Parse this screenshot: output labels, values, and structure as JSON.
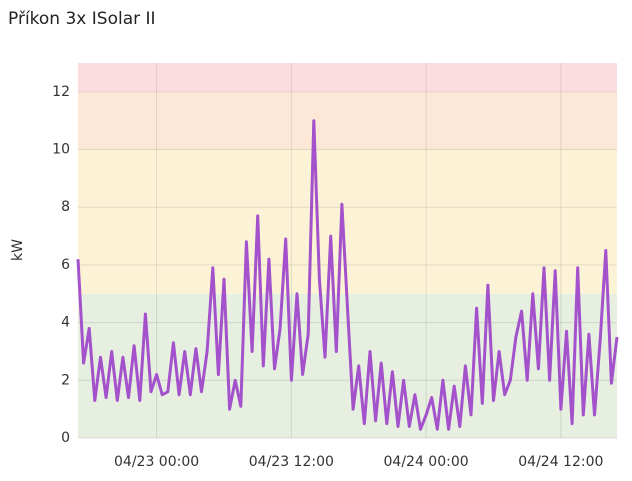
{
  "chart_data": {
    "type": "line",
    "title": "Příkon 3x ISolar II",
    "y_label": "kW",
    "categories": [
      null,
      null,
      null,
      null,
      null,
      null,
      null,
      null,
      null,
      null,
      null,
      null,
      null,
      null,
      "04/23 00:00",
      null,
      null,
      null,
      null,
      null,
      null,
      null,
      null,
      null,
      null,
      null,
      null,
      null,
      null,
      null,
      null,
      null,
      null,
      null,
      null,
      null,
      null,
      null,
      "04/23 12:00",
      null,
      null,
      null,
      null,
      null,
      null,
      null,
      null,
      null,
      null,
      null,
      null,
      null,
      null,
      null,
      null,
      null,
      null,
      null,
      null,
      null,
      null,
      null,
      "04/24 00:00",
      null,
      null,
      null,
      null,
      null,
      null,
      null,
      null,
      null,
      null,
      null,
      null,
      null,
      null,
      null,
      null,
      null,
      null,
      null,
      null,
      null,
      null,
      null,
      "04/24 12:00",
      null,
      null,
      null,
      null,
      null,
      null,
      null,
      null,
      null,
      null
    ],
    "series": [
      {
        "color": "#a352cc",
        "values": [
          6.2,
          2.6,
          3.8,
          1.3,
          2.8,
          1.4,
          3.0,
          1.3,
          2.8,
          1.4,
          3.2,
          1.3,
          4.3,
          1.6,
          2.2,
          1.5,
          1.6,
          3.3,
          1.5,
          3.0,
          1.5,
          3.1,
          1.6,
          3.0,
          5.9,
          2.2,
          5.5,
          1.0,
          2.0,
          1.1,
          6.8,
          3.0,
          7.7,
          2.5,
          6.2,
          2.4,
          3.8,
          6.9,
          2.0,
          5.0,
          2.2,
          3.6,
          11.0,
          5.5,
          2.8,
          7.0,
          3.0,
          8.1,
          4.5,
          1.0,
          2.5,
          0.5,
          3.0,
          0.6,
          2.6,
          0.5,
          2.3,
          0.4,
          2.0,
          0.4,
          1.5,
          0.3,
          0.8,
          1.4,
          0.3,
          2.0,
          0.3,
          1.8,
          0.4,
          2.5,
          0.8,
          4.5,
          1.2,
          5.3,
          1.3,
          3.0,
          1.5,
          2.0,
          3.5,
          4.4,
          2.0,
          5.0,
          2.4,
          5.9,
          2.0,
          5.8,
          1.0,
          3.7,
          0.5,
          5.9,
          0.8,
          3.6,
          0.8,
          3.4,
          6.5,
          1.9,
          3.5
        ]
      }
    ],
    "ylim": [
      0,
      13
    ],
    "yticks": [
      0,
      2,
      4,
      6,
      8,
      10,
      12
    ],
    "grid": true,
    "thresholds": [
      {
        "from": 0,
        "to": 5,
        "color": "#e6efe0"
      },
      {
        "from": 5,
        "to": 10,
        "color": "#fcf3d6"
      },
      {
        "from": 10,
        "to": 12,
        "color": "#fde8d8"
      },
      {
        "from": 12,
        "to": 13,
        "color": "#fbdde0"
      }
    ]
  }
}
